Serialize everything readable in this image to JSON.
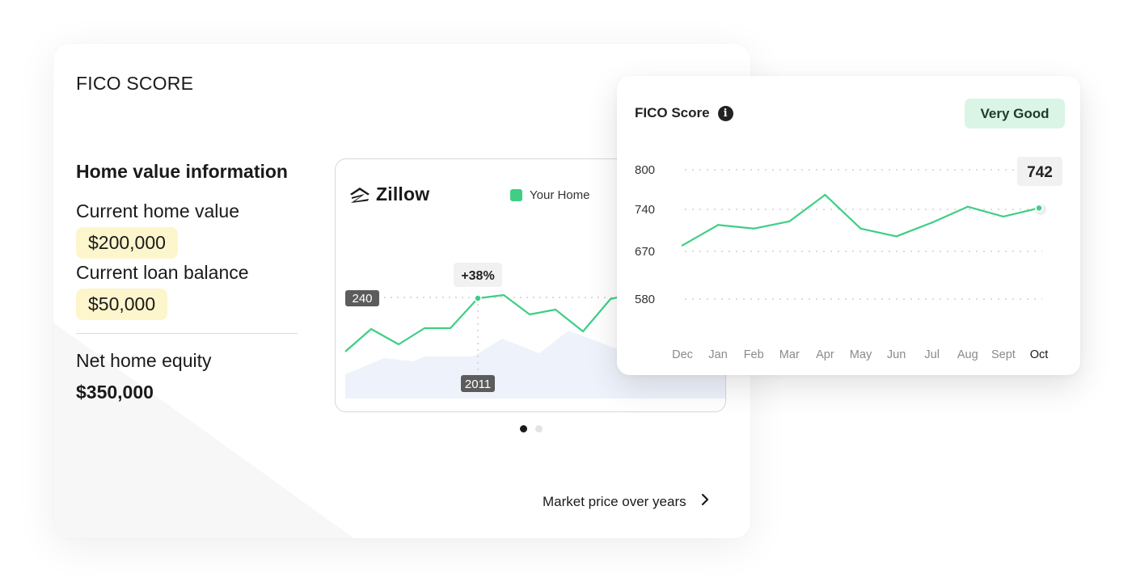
{
  "card": {
    "title": "FICO SCORE"
  },
  "home_info": {
    "heading": "Home value information",
    "current_value_label": "Current home value",
    "current_value": "$200,000",
    "loan_balance_label": "Current loan balance",
    "loan_balance": "$50,000",
    "net_equity_label": "Net home equity",
    "net_equity": "$350,000"
  },
  "zillow": {
    "brand": "Zillow",
    "legend": [
      {
        "label": "Your Home",
        "color": "#3ecf85"
      }
    ],
    "tooltip_change": "+38%",
    "y_marker_label": "240",
    "x_marker_label": "2011"
  },
  "carousel": {
    "count": 2,
    "active_index": 0
  },
  "market_link": {
    "label": "Market price over years"
  },
  "fico_card": {
    "title": "FICO Score",
    "rating": "Very Good",
    "score_label": "742",
    "accent": "#3ecf85",
    "rating_bg": "#daf5e6"
  },
  "chart_data": {
    "type": "line",
    "title": "FICO Score",
    "categories": [
      "Dec",
      "Jan",
      "Feb",
      "Mar",
      "Apr",
      "May",
      "Jun",
      "Jul",
      "Aug",
      "Sept",
      "Oct"
    ],
    "series": [
      {
        "values": [
          680,
          714,
          708,
          720,
          762,
          708,
          695,
          718,
          744,
          728,
          742
        ]
      }
    ],
    "y_ticks": [
      800,
      740,
      670,
      580
    ],
    "ylim": [
      580,
      800
    ],
    "grid": true,
    "highlight": {
      "category": "Oct",
      "label": "742"
    }
  }
}
